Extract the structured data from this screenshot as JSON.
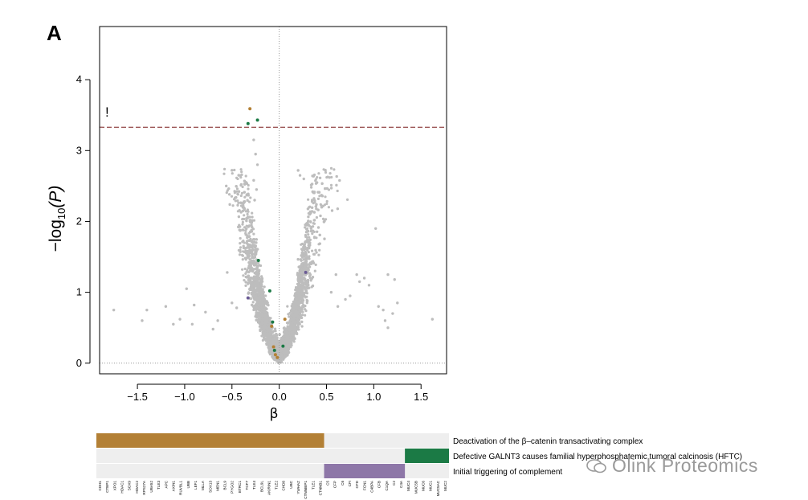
{
  "panel_label": "A",
  "watermark": "Olink Proteomics",
  "colors": {
    "background_points": "#bdbdbd",
    "threshold_line": "#7a1c1c",
    "pathway_1": "#b38035",
    "pathway_2": "#1b7a45",
    "pathway_3": "#8e77a8",
    "pathway_3_point": "#6b5b95",
    "heatmap_empty": "#eeeeee"
  },
  "chart_data": [
    {
      "type": "scatter",
      "title": "",
      "xlabel": "β",
      "ylabel_prefix": "−log",
      "ylabel_sub": "10",
      "ylabel_suffix": "(P)",
      "xlim": [
        -1.9,
        1.77
      ],
      "ylim": [
        -0.15,
        4.75
      ],
      "xticks": [
        -1.5,
        -1.0,
        -0.5,
        0.0,
        0.5,
        1.0,
        1.5
      ],
      "xtick_labels": [
        "−1.5",
        "−1.0",
        "−0.5",
        "0.0",
        "0.5",
        "1.0",
        "1.5"
      ],
      "yticks": [
        0,
        1,
        2,
        3,
        4
      ],
      "ytick_labels": [
        "0",
        "1",
        "2",
        "3",
        "4"
      ],
      "significance_threshold": 3.33,
      "significance_marker": "!",
      "background_point_count": 4500,
      "notable_points": [
        {
          "x": -1.75,
          "y": 0.75
        },
        {
          "x": -1.45,
          "y": 0.6
        },
        {
          "x": -1.4,
          "y": 0.75
        },
        {
          "x": -1.2,
          "y": 0.8
        },
        {
          "x": -1.12,
          "y": 0.55
        },
        {
          "x": -1.05,
          "y": 0.62
        },
        {
          "x": -0.98,
          "y": 1.05
        },
        {
          "x": -0.92,
          "y": 0.55
        },
        {
          "x": -0.9,
          "y": 0.82
        },
        {
          "x": -0.78,
          "y": 0.72
        },
        {
          "x": -0.7,
          "y": 0.48
        },
        {
          "x": -0.65,
          "y": 0.6
        },
        {
          "x": -0.55,
          "y": 1.28
        },
        {
          "x": -0.5,
          "y": 0.85
        },
        {
          "x": -0.45,
          "y": 0.78
        },
        {
          "x": -0.42,
          "y": 1.88
        },
        {
          "x": 0.85,
          "y": 1.15
        },
        {
          "x": 0.9,
          "y": 1.2
        },
        {
          "x": 0.95,
          "y": 1.1
        },
        {
          "x": 1.02,
          "y": 1.9
        },
        {
          "x": 1.05,
          "y": 0.8
        },
        {
          "x": 1.1,
          "y": 0.75
        },
        {
          "x": 1.15,
          "y": 1.25
        },
        {
          "x": 1.2,
          "y": 0.7
        },
        {
          "x": 1.22,
          "y": 1.18
        },
        {
          "x": 1.25,
          "y": 0.85
        },
        {
          "x": 1.12,
          "y": 0.6
        },
        {
          "x": 1.15,
          "y": 0.5
        },
        {
          "x": 1.62,
          "y": 0.62
        },
        {
          "x": 0.82,
          "y": 1.25
        },
        {
          "x": 0.7,
          "y": 0.9
        },
        {
          "x": 0.62,
          "y": 0.8
        },
        {
          "x": 0.6,
          "y": 1.25
        },
        {
          "x": 0.75,
          "y": 0.95
        },
        {
          "x": 0.55,
          "y": 1.0
        },
        {
          "x": -0.27,
          "y": 3.15
        },
        {
          "x": -0.25,
          "y": 2.95
        },
        {
          "x": -0.23,
          "y": 2.8
        },
        {
          "x": -0.27,
          "y": 2.58
        },
        {
          "x": -0.24,
          "y": 2.45
        },
        {
          "x": -0.26,
          "y": 2.3
        },
        {
          "x": 0.2,
          "y": 2.72
        },
        {
          "x": 0.22,
          "y": 2.65
        },
        {
          "x": 0.26,
          "y": 2.6
        }
      ],
      "highlighted_points": [
        {
          "x": -0.31,
          "y": 3.59,
          "pathway": 0
        },
        {
          "x": -0.33,
          "y": 3.38,
          "pathway": 1
        },
        {
          "x": -0.23,
          "y": 3.43,
          "pathway": 1
        },
        {
          "x": -0.22,
          "y": 1.45,
          "pathway": 1
        },
        {
          "x": -0.1,
          "y": 1.02,
          "pathway": 1
        },
        {
          "x": -0.07,
          "y": 0.58,
          "pathway": 1
        },
        {
          "x": 0.04,
          "y": 0.24,
          "pathway": 1
        },
        {
          "x": -0.08,
          "y": 0.52,
          "pathway": 0
        },
        {
          "x": -0.06,
          "y": 0.23,
          "pathway": 0
        },
        {
          "x": -0.04,
          "y": 0.12,
          "pathway": 0
        },
        {
          "x": -0.02,
          "y": 0.08,
          "pathway": 0
        },
        {
          "x": 0.06,
          "y": 0.62,
          "pathway": 0
        },
        {
          "x": -0.05,
          "y": 0.18,
          "pathway": 1
        },
        {
          "x": 0.28,
          "y": 1.28,
          "pathway": 2
        },
        {
          "x": -0.33,
          "y": 0.92,
          "pathway": 2
        }
      ]
    },
    {
      "type": "heatmap",
      "genes": [
        "CDH1",
        "CTBP1",
        "XPO1",
        "HDAC1",
        "SOX9",
        "HDAC2",
        "RPS27A",
        "UBA52",
        "TLE3",
        "APC",
        "AXIN1",
        "RUVBL1",
        "UBB",
        "LEF1",
        "MLLA",
        "SOX13",
        "MEN1",
        "BCL9",
        "PYGO2",
        "BTRC1",
        "TCF7",
        "TLE4",
        "BCL9L",
        "AKIRIN1",
        "TLE2",
        "CHD8",
        "UBC",
        "YWHAZ",
        "CTNNBIP1",
        "TLE1",
        "CTNNB1",
        "C5",
        "CFP",
        "C6",
        "CFI",
        "CFD",
        "FCN1",
        "C4BPA",
        "CFB",
        "C1QA",
        "C2",
        "C4A",
        "MUC4",
        "MUC5B",
        "MUC6",
        "MUC1",
        "MUC5AC",
        "MUC2"
      ],
      "gene_labels": [
        "CDH1",
        "CTBP1",
        "XPO1",
        "HDAC1",
        "SOX9",
        "HDAC2",
        "RPS27A",
        "UBA52",
        "TLE3",
        "APC",
        "AXIN1",
        "RUVBL1",
        "UBB",
        "LEF1",
        "MLLA",
        "SOX13",
        "MEN1",
        "BCL9",
        "PYGO2",
        "BTRC1",
        "TCF7",
        "TLE4",
        "BCL9L",
        "AKIRIN1",
        "TLE2",
        "CHD8",
        "UBC",
        "YWHAZ",
        "CTNNBIP1",
        "TLE1",
        "CTNNB1",
        "C5",
        "CFP",
        "C6",
        "CFI",
        "CFD",
        "FCN1",
        "C4BPA",
        "CFB",
        "C1QA",
        "C2",
        "C4A",
        "MUC4",
        "MUC5B",
        "MUC6",
        "MUC1",
        "MUC5AC",
        "MUC2"
      ],
      "pathways": [
        {
          "name": "Deactivation of the β–catenin transactivating complex",
          "start": 0,
          "end": 30
        },
        {
          "name": "Defective GALNT3 causes familial hyperphosphatemic tumoral calcinosis (HFTC)",
          "start": 42,
          "end": 47
        },
        {
          "name": "Initial triggering of complement",
          "start": 31,
          "end": 41
        }
      ]
    }
  ]
}
